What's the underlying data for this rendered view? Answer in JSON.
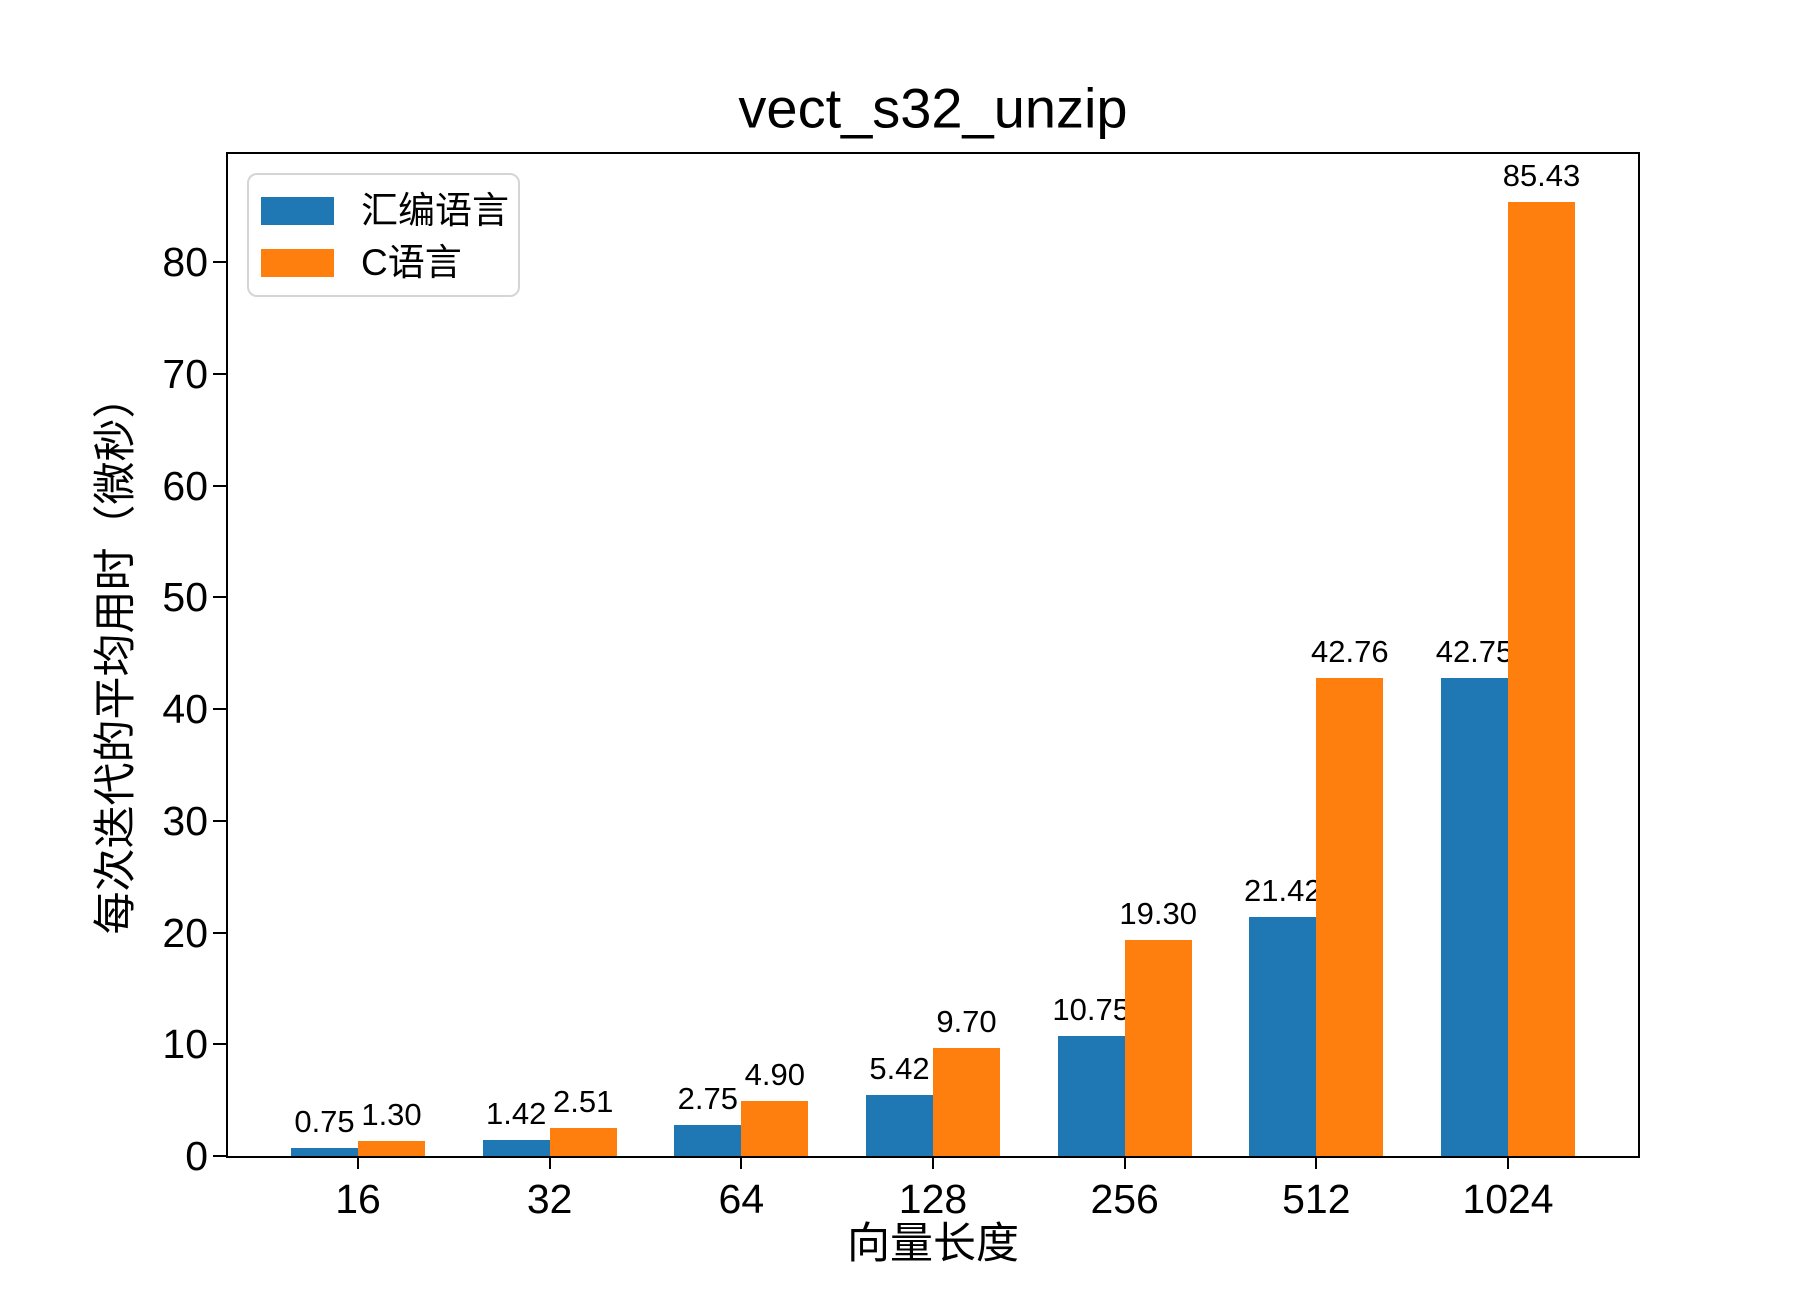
{
  "chart_data": {
    "type": "bar",
    "title": "vect_s32_unzip",
    "xlabel": "向量长度",
    "ylabel": "每次迭代的平均用时（微秒）",
    "categories": [
      "16",
      "32",
      "64",
      "128",
      "256",
      "512",
      "1024"
    ],
    "series": [
      {
        "name": "汇编语言",
        "color": "#1f77b4",
        "values": [
          0.75,
          1.42,
          2.75,
          5.42,
          10.75,
          21.42,
          42.75
        ]
      },
      {
        "name": "C语言",
        "color": "#ff7f0e",
        "values": [
          1.3,
          2.51,
          4.9,
          9.7,
          19.3,
          42.76,
          85.43
        ]
      }
    ],
    "yticks": [
      0,
      10,
      20,
      30,
      40,
      50,
      60,
      70,
      80
    ],
    "ylim": [
      0,
      89.7
    ],
    "value_label_decimals": 2,
    "grid": false,
    "legend_position": "upper-left",
    "bar_group_width": 0.7,
    "axis_color": "#000000",
    "background_color": "#ffffff",
    "legend_border_color": "#d5d5d5"
  }
}
